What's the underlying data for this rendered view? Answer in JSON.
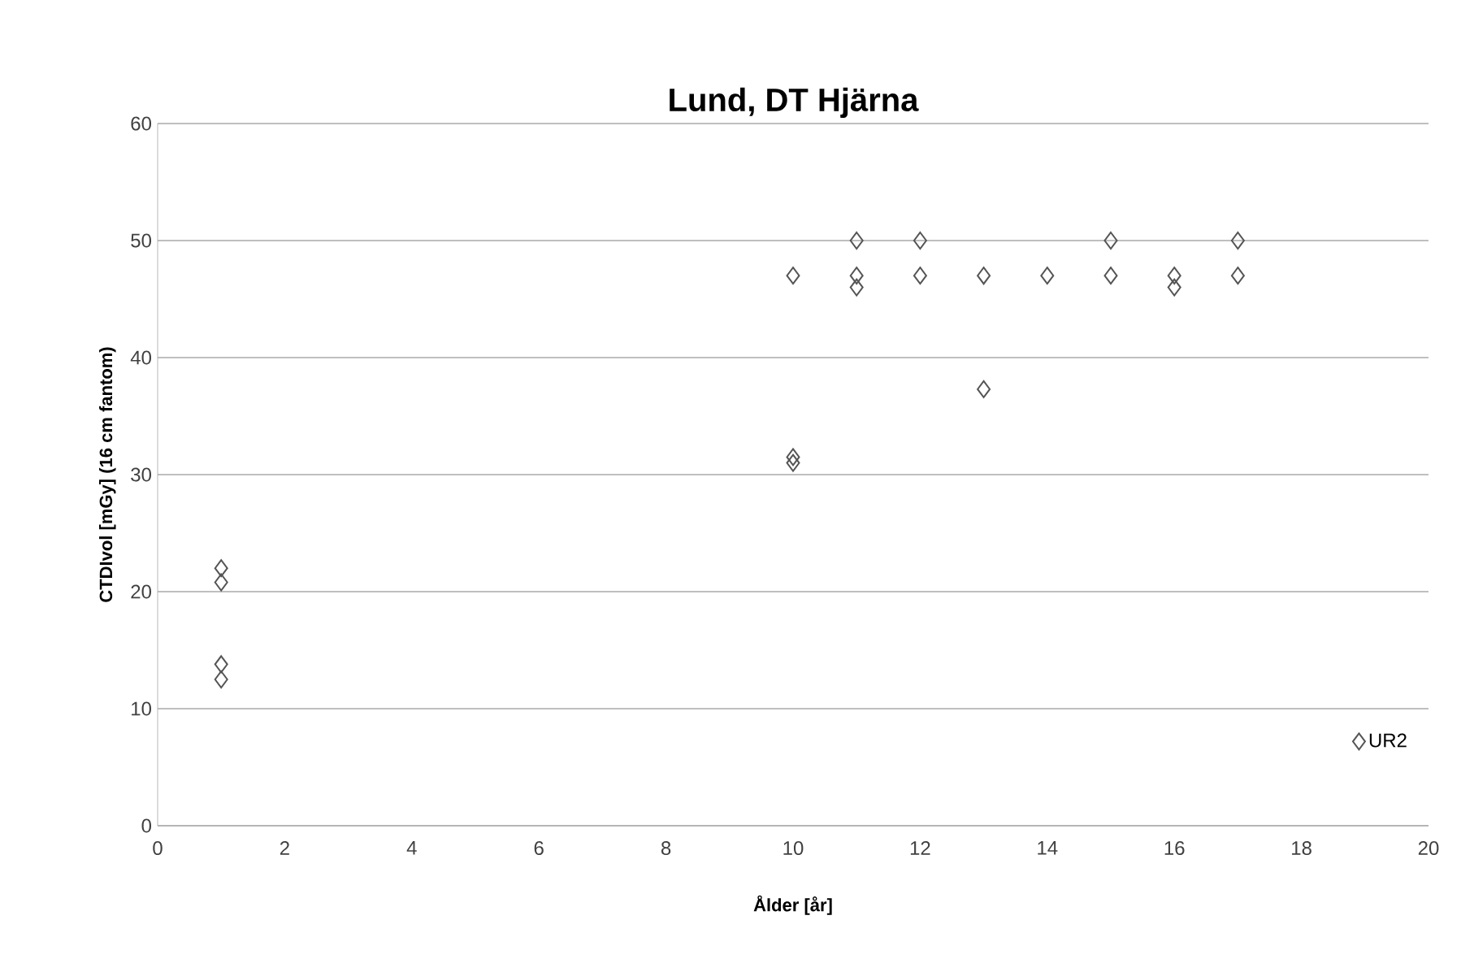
{
  "chart_data": {
    "type": "scatter",
    "title": "Lund, DT Hjärna",
    "xlabel": "Ålder [år]",
    "ylabel": "CTDIvol  [mGy]  (16 cm fantom)",
    "series": [
      {
        "name": "UR2",
        "color": "#555555",
        "x": [
          1,
          1,
          1,
          1,
          10,
          10,
          10,
          11,
          11,
          11,
          12,
          12,
          13,
          13,
          14,
          15,
          15,
          16,
          16,
          17,
          17
        ],
        "values": [
          22,
          20.8,
          13.8,
          12.5,
          47,
          31.5,
          31,
          50,
          47,
          46,
          50,
          47,
          47,
          37.3,
          47,
          50,
          47,
          47,
          46,
          50,
          47
        ]
      }
    ],
    "xlim": [
      0,
      20
    ],
    "ylim": [
      0,
      60
    ],
    "xticks": [
      0,
      2,
      4,
      6,
      8,
      10,
      12,
      14,
      16,
      18,
      20
    ],
    "yticks": [
      0,
      10,
      20,
      30,
      40,
      50,
      60
    ],
    "grid": "y",
    "legend": "bottom right",
    "marker": "diamond"
  }
}
